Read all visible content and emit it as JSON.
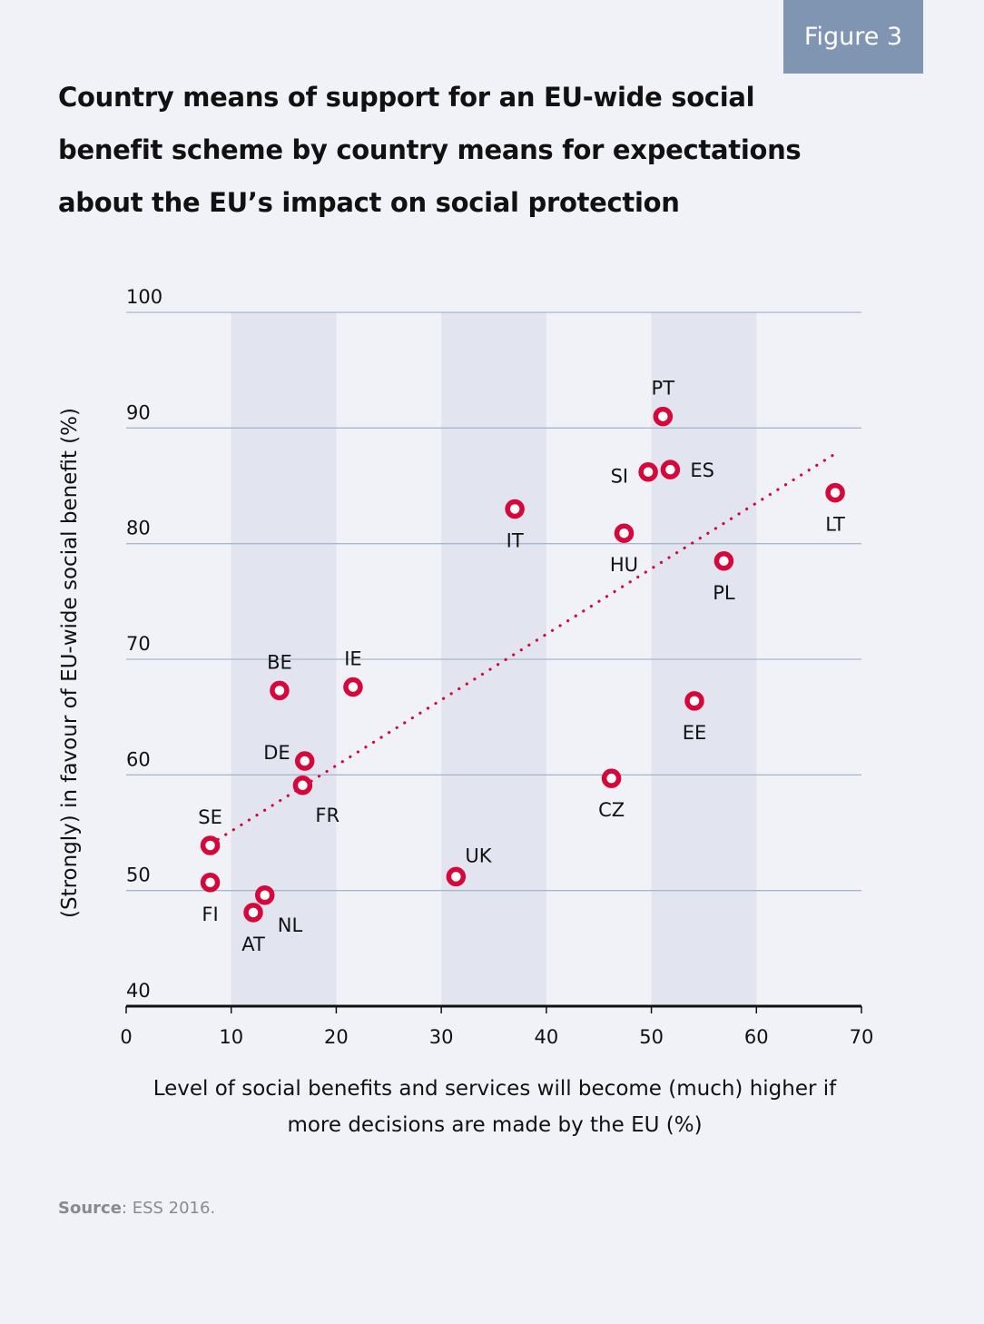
{
  "badge": {
    "label": "Figure 3"
  },
  "title_lines": [
    "Country means of support for an EU-wide social",
    "benefit scheme by country means for expectations",
    "about the EU’s impact on social protection"
  ],
  "source": {
    "label": "Source",
    "text": ": ESS 2016."
  },
  "colors": {
    "background": "#f1f2f8",
    "badge": "#7f95b2",
    "band": "#e2e5ef",
    "gridline": "#a9b6cf",
    "marker": "#d6083b",
    "axis": "#111111"
  },
  "chart_data": {
    "type": "scatter",
    "title": "Country means of support for an EU-wide social benefit scheme by country means for expectations about the EU’s impact on social protection",
    "xlabel": "Level of social benefits and services will become (much) higher if more decisions are made by the EU (%)",
    "xlabel_lines": [
      "Level of social benefits and services will become (much) higher if",
      "more decisions are made by the EU (%)"
    ],
    "ylabel": "(Strongly) in favour of EU-wide social benefit  (%)",
    "xlim": [
      0,
      70
    ],
    "ylim": [
      40,
      100
    ],
    "xticks": [
      "0",
      "10",
      "20",
      "30",
      "40",
      "50",
      "60",
      "70"
    ],
    "yticks": [
      "40",
      "50",
      "60",
      "70",
      "80",
      "90",
      "100"
    ],
    "grid": "horizontal",
    "shaded_bands_x": [
      [
        10,
        20
      ],
      [
        30,
        40
      ],
      [
        50,
        60
      ]
    ],
    "points": [
      {
        "label": "PT",
        "x": 51.1,
        "y": 91.0,
        "pos": "top"
      },
      {
        "label": "SI",
        "x": 49.7,
        "y": 86.2,
        "pos": "left"
      },
      {
        "label": "ES",
        "x": 51.8,
        "y": 86.4,
        "pos": "right"
      },
      {
        "label": "LT",
        "x": 67.5,
        "y": 84.4,
        "pos": "bottom"
      },
      {
        "label": "IT",
        "x": 37.0,
        "y": 83.0,
        "pos": "bottom"
      },
      {
        "label": "HU",
        "x": 47.4,
        "y": 80.9,
        "pos": "bottom"
      },
      {
        "label": "PL",
        "x": 56.9,
        "y": 78.5,
        "pos": "bottom"
      },
      {
        "label": "IE",
        "x": 21.6,
        "y": 67.6,
        "pos": "top"
      },
      {
        "label": "BE",
        "x": 14.6,
        "y": 67.3,
        "pos": "top"
      },
      {
        "label": "EE",
        "x": 54.1,
        "y": 66.4,
        "pos": "bottom"
      },
      {
        "label": "DE",
        "x": 17.0,
        "y": 61.2,
        "pos": "topleft"
      },
      {
        "label": "FR",
        "x": 16.8,
        "y": 59.1,
        "pos": "bottomright"
      },
      {
        "label": "CZ",
        "x": 46.2,
        "y": 59.7,
        "pos": "bottom"
      },
      {
        "label": "SE",
        "x": 8.0,
        "y": 53.9,
        "pos": "top"
      },
      {
        "label": "FI",
        "x": 8.0,
        "y": 50.7,
        "pos": "bottom"
      },
      {
        "label": "UK",
        "x": 31.4,
        "y": 51.2,
        "pos": "topright"
      },
      {
        "label": "NL",
        "x": 13.2,
        "y": 49.6,
        "pos": "bottomright"
      },
      {
        "label": "AT",
        "x": 12.1,
        "y": 48.1,
        "pos": "bottom"
      }
    ],
    "trendline": {
      "style": "dotted",
      "x": [
        8.0,
        67.9
      ],
      "y": [
        54.0,
        88.0
      ]
    }
  }
}
